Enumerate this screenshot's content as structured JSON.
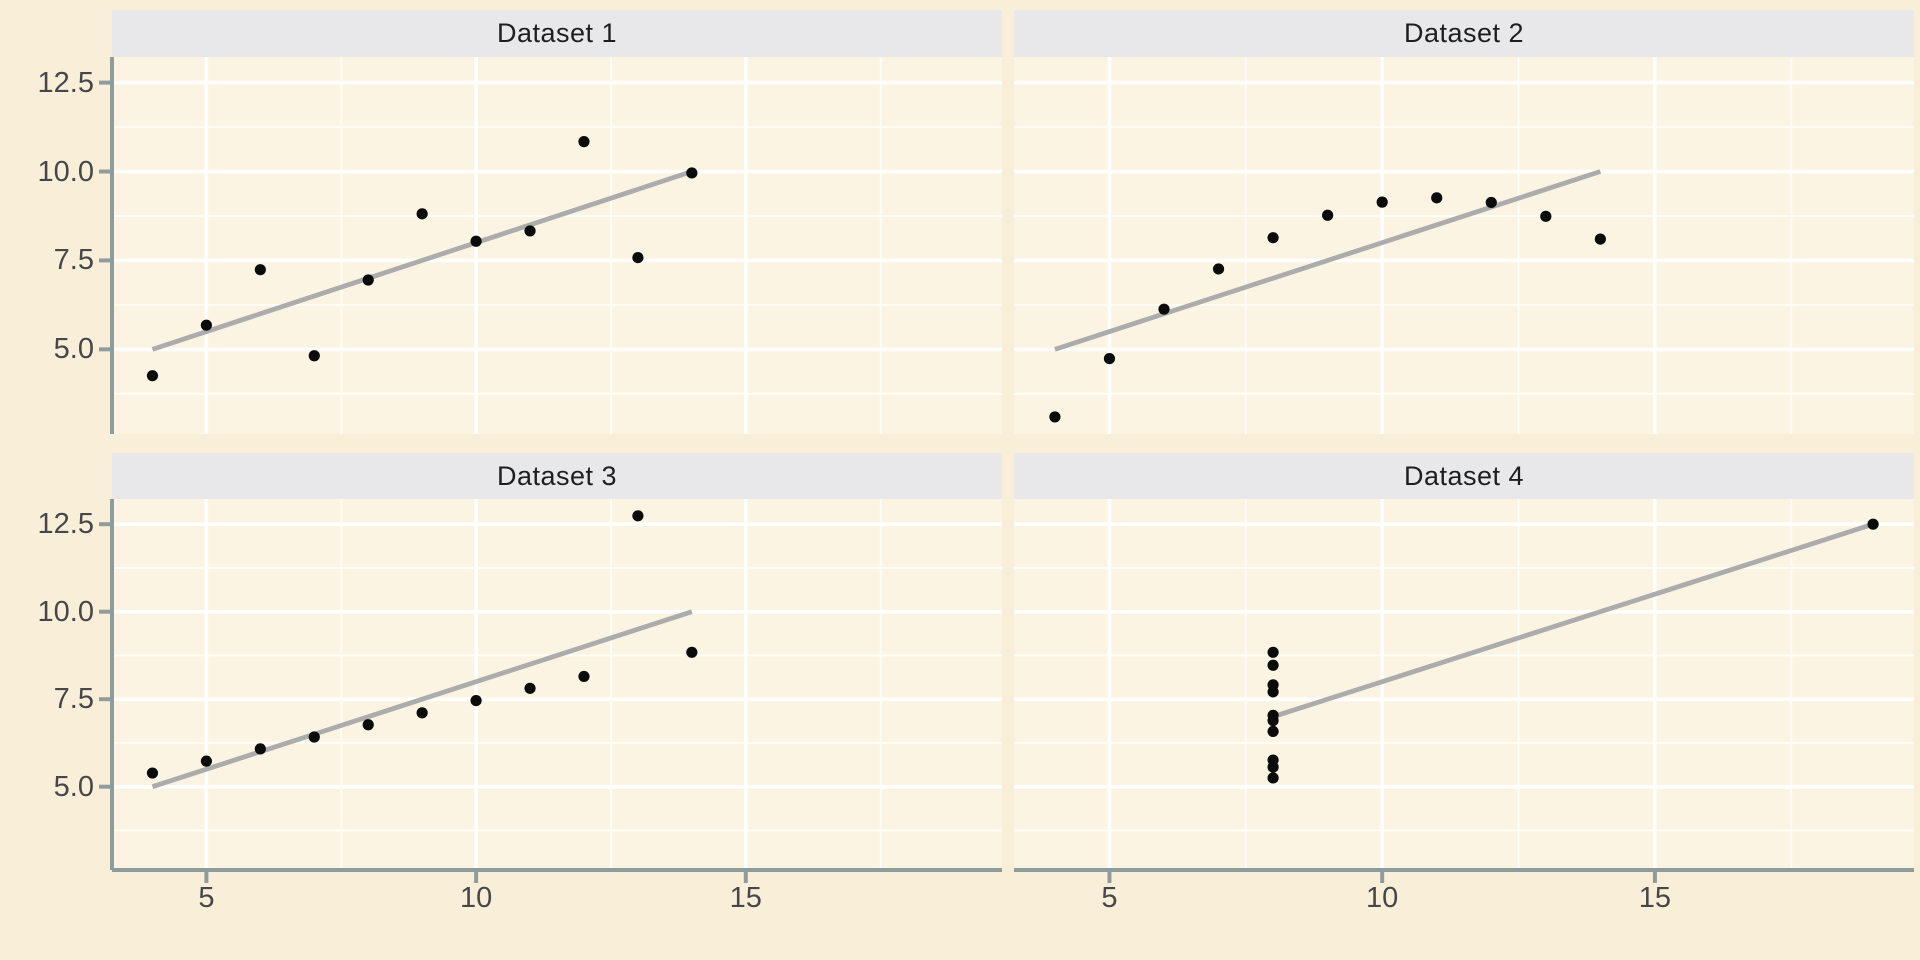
{
  "figure": {
    "kind": "faceted-scatter-plot",
    "facet_titles": [
      "Dataset 1",
      "Dataset 2",
      "Dataset 3",
      "Dataset 4"
    ],
    "colors": {
      "figure_background": "#F9EFD9",
      "panel_background": "#FCF4E3",
      "strip_background": "#E8E8EA",
      "strip_text": "#1D1E20",
      "grid_major": "#FFFFFF",
      "grid_minor": "#FFFDF7",
      "axis_line": "#8E9C9C",
      "tick_text": "#46474B",
      "point": "#0B0B0B",
      "smooth_line": "#ACACAC"
    }
  },
  "axes": {
    "x": {
      "domain": [
        3.25,
        19.75
      ],
      "major_ticks": [
        5,
        10,
        15
      ],
      "minor_ticks": [
        7.5,
        12.5,
        17.5
      ],
      "tick_labels": [
        "5",
        "10",
        "15"
      ]
    },
    "y": {
      "domain": [
        2.62,
        13.22
      ],
      "major_ticks": [
        5.0,
        7.5,
        10.0,
        12.5
      ],
      "minor_ticks": [
        3.75,
        6.25,
        8.75,
        11.25
      ],
      "tick_labels": [
        "5.0",
        "7.5",
        "10.0",
        "12.5"
      ]
    }
  },
  "chart_data": [
    {
      "type": "scatter",
      "title": "Dataset 1",
      "points": [
        [
          10,
          8.04
        ],
        [
          8,
          6.95
        ],
        [
          13,
          7.58
        ],
        [
          9,
          8.81
        ],
        [
          11,
          8.33
        ],
        [
          14,
          9.96
        ],
        [
          6,
          7.24
        ],
        [
          4,
          4.26
        ],
        [
          12,
          10.84
        ],
        [
          7,
          4.82
        ],
        [
          5,
          5.68
        ]
      ],
      "smooth": {
        "x1": 4,
        "y1": 5.0,
        "x2": 14,
        "y2": 10.0
      },
      "xlim": [
        3.25,
        19.75
      ],
      "ylim": [
        2.62,
        13.22
      ],
      "grid": true,
      "legend": "none"
    },
    {
      "type": "scatter",
      "title": "Dataset 2",
      "points": [
        [
          10,
          9.14
        ],
        [
          8,
          8.14
        ],
        [
          13,
          8.74
        ],
        [
          9,
          8.77
        ],
        [
          11,
          9.26
        ],
        [
          14,
          8.1
        ],
        [
          6,
          6.13
        ],
        [
          4,
          3.1
        ],
        [
          12,
          9.13
        ],
        [
          7,
          7.26
        ],
        [
          5,
          4.74
        ]
      ],
      "smooth": {
        "x1": 4,
        "y1": 5.0,
        "x2": 14,
        "y2": 10.0
      },
      "xlim": [
        3.25,
        19.75
      ],
      "ylim": [
        2.62,
        13.22
      ],
      "grid": true,
      "legend": "none"
    },
    {
      "type": "scatter",
      "title": "Dataset 3",
      "points": [
        [
          10,
          7.46
        ],
        [
          8,
          6.77
        ],
        [
          13,
          12.74
        ],
        [
          9,
          7.11
        ],
        [
          11,
          7.81
        ],
        [
          14,
          8.84
        ],
        [
          6,
          6.08
        ],
        [
          4,
          5.39
        ],
        [
          12,
          8.15
        ],
        [
          7,
          6.42
        ],
        [
          5,
          5.73
        ]
      ],
      "smooth": {
        "x1": 4,
        "y1": 5.0,
        "x2": 14,
        "y2": 10.0
      },
      "xlim": [
        3.25,
        19.75
      ],
      "ylim": [
        2.62,
        13.22
      ],
      "grid": true,
      "legend": "none"
    },
    {
      "type": "scatter",
      "title": "Dataset 4",
      "points": [
        [
          8,
          6.58
        ],
        [
          8,
          5.76
        ],
        [
          8,
          7.71
        ],
        [
          8,
          8.84
        ],
        [
          8,
          8.47
        ],
        [
          8,
          7.04
        ],
        [
          8,
          5.25
        ],
        [
          19,
          12.5
        ],
        [
          8,
          5.56
        ],
        [
          8,
          7.91
        ],
        [
          8,
          6.89
        ]
      ],
      "smooth": {
        "x1": 8,
        "y1": 7.0,
        "x2": 19,
        "y2": 12.5
      },
      "xlim": [
        3.25,
        19.75
      ],
      "ylim": [
        2.62,
        13.22
      ],
      "grid": true,
      "legend": "none"
    }
  ]
}
